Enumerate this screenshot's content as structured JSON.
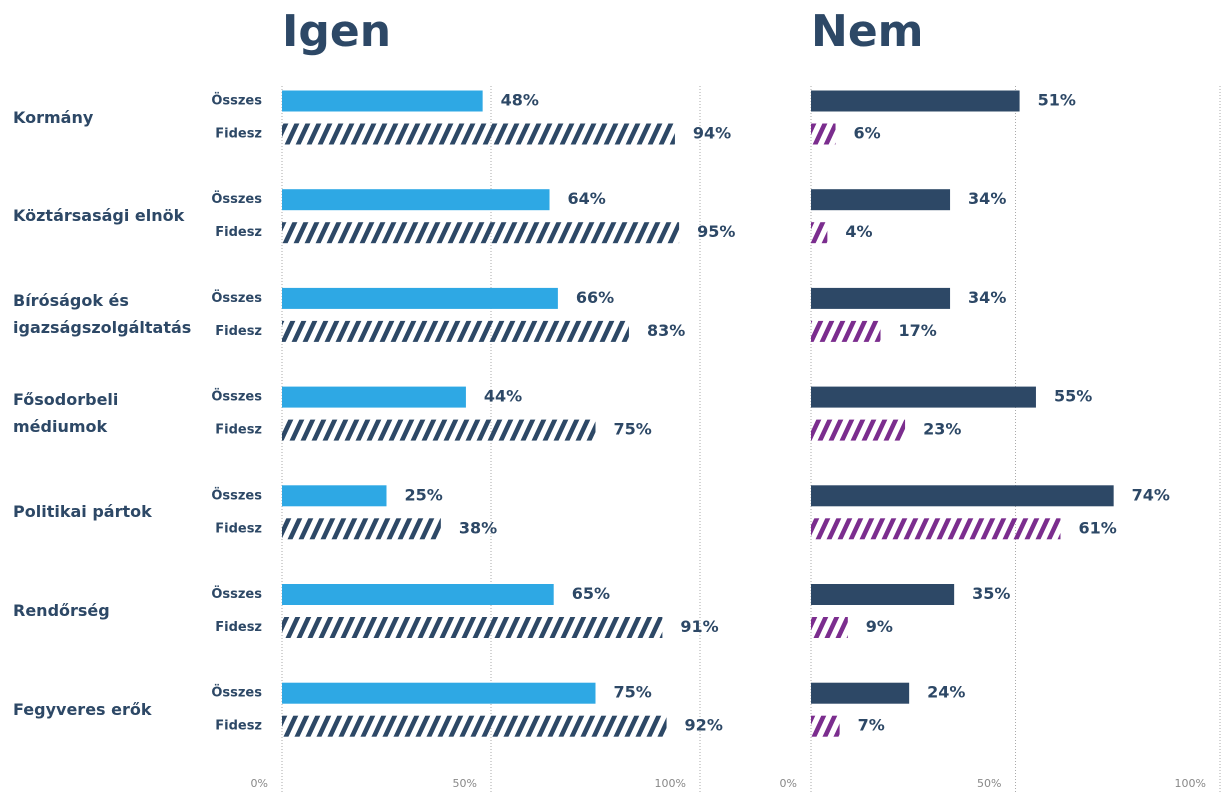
{
  "chart_data": {
    "type": "bar",
    "categories": [
      "Kormány",
      "Köztársasági elnök",
      "Bíróságok és igazságszolgáltatás",
      "Fősodorbeli médiumok",
      "Politikai pártok",
      "Rendőrség",
      "Fegyveres erők"
    ],
    "xlim": [
      0,
      100
    ],
    "xticks": [
      {
        "value": 0,
        "label": "0%"
      },
      {
        "value": 50,
        "label": "50%"
      },
      {
        "value": 100,
        "label": "100%"
      }
    ],
    "grid": true,
    "panels": [
      {
        "title": "Igen",
        "series": [
          {
            "name": "Összes",
            "color": "#2ea8e4",
            "values": [
              48,
              64,
              66,
              44,
              25,
              65,
              75
            ],
            "value_labels": [
              "48%",
              "64%",
              "66%",
              "44%",
              "25%",
              "65%",
              "75%"
            ]
          },
          {
            "name": "Fidesz",
            "color": "#2d4866",
            "pattern": "hatch",
            "values": [
              94,
              95,
              83,
              75,
              38,
              91,
              92
            ],
            "value_labels": [
              "94%",
              "95%",
              "83%",
              "75%",
              "38%",
              "91%",
              "92%"
            ]
          }
        ]
      },
      {
        "title": "Nem",
        "series": [
          {
            "color": "#2d4866",
            "values": [
              51,
              34,
              34,
              55,
              74,
              35,
              24
            ],
            "value_labels": [
              "51%",
              "34%",
              "34%",
              "55%",
              "74%",
              "35%",
              "24%"
            ]
          },
          {
            "color": "#7b2d8e",
            "pattern": "hatch",
            "values": [
              6,
              4,
              17,
              23,
              61,
              9,
              7
            ],
            "value_labels": [
              "6%",
              "4%",
              "17%",
              "23%",
              "61%",
              "9%",
              "7%"
            ]
          }
        ]
      }
    ]
  }
}
